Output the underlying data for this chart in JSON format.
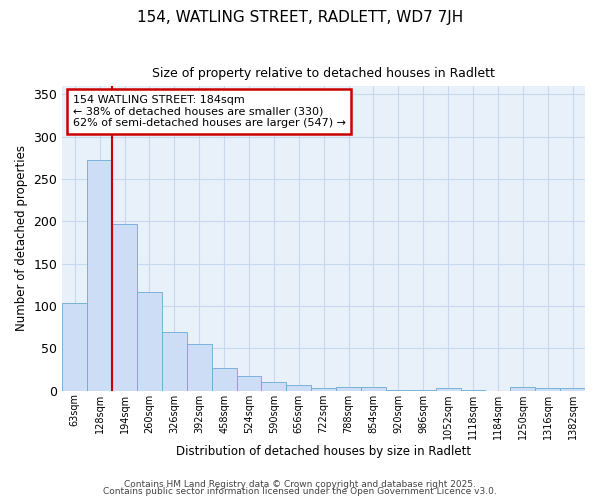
{
  "title1": "154, WATLING STREET, RADLETT, WD7 7JH",
  "title2": "Size of property relative to detached houses in Radlett",
  "xlabel": "Distribution of detached houses by size in Radlett",
  "ylabel": "Number of detached properties",
  "bin_labels": [
    "63sqm",
    "128sqm",
    "194sqm",
    "260sqm",
    "326sqm",
    "392sqm",
    "458sqm",
    "524sqm",
    "590sqm",
    "656sqm",
    "722sqm",
    "788sqm",
    "854sqm",
    "920sqm",
    "986sqm",
    "1052sqm",
    "1118sqm",
    "1184sqm",
    "1250sqm",
    "1316sqm",
    "1382sqm"
  ],
  "bar_values": [
    103,
    272,
    197,
    116,
    69,
    55,
    27,
    17,
    10,
    7,
    3,
    4,
    4,
    1,
    1,
    3,
    1,
    0,
    4,
    3,
    3
  ],
  "bar_color": "#ccddf5",
  "bar_edge_color": "#6aaad4",
  "ylim": [
    0,
    360
  ],
  "yticks": [
    0,
    50,
    100,
    150,
    200,
    250,
    300,
    350
  ],
  "red_line_bin_index": 2,
  "annotation_text": "154 WATLING STREET: 184sqm\n← 38% of detached houses are smaller (330)\n62% of semi-detached houses are larger (547) →",
  "annotation_box_color": "#ffffff",
  "annotation_box_edge": "#cc0000",
  "red_line_color": "#cc0000",
  "grid_color": "#c8d8ee",
  "bg_color": "#ffffff",
  "plot_bg_color": "#e8f0fa",
  "footer_line1": "Contains HM Land Registry data © Crown copyright and database right 2025.",
  "footer_line2": "Contains public sector information licensed under the Open Government Licence v3.0."
}
